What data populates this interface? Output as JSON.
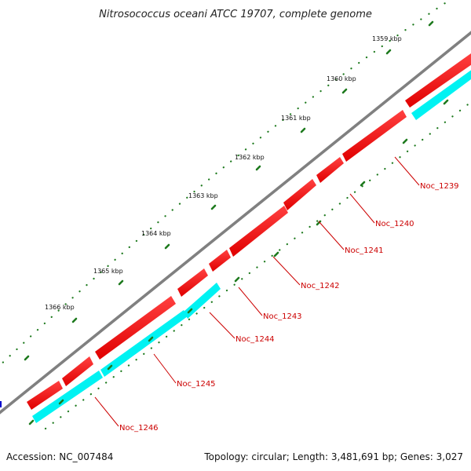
{
  "title": "Nitrosococcus oceani ATCC 19707, complete genome",
  "footer": {
    "accession": "Accession: NC_007484",
    "summary": "Topology: circular; Length: 3,481,691 bp; Genes: 3,027"
  },
  "ticks": [
    {
      "label": "1359 kbp"
    },
    {
      "label": "1360 kbp"
    },
    {
      "label": "1361 kbp"
    },
    {
      "label": "1362 kbp"
    },
    {
      "label": "1363 kbp"
    },
    {
      "label": "1364 kbp"
    },
    {
      "label": "1365 kbp"
    },
    {
      "label": "1366 kbp"
    }
  ],
  "genes": [
    {
      "label": "Noc_1239"
    },
    {
      "label": "Noc_1240"
    },
    {
      "label": "Noc_1241"
    },
    {
      "label": "Noc_1242"
    },
    {
      "label": "Noc_1243"
    },
    {
      "label": "Noc_1244"
    },
    {
      "label": "Noc_1245"
    },
    {
      "label": "Noc_1246"
    }
  ],
  "colors": {
    "backbone": "#808080",
    "forward_feature": "#ff0000",
    "reverse_feature": "#00ffff",
    "tick_marks": "#1e7a1e",
    "label_line": "#cc0000",
    "start_marker": "#0000cc"
  }
}
